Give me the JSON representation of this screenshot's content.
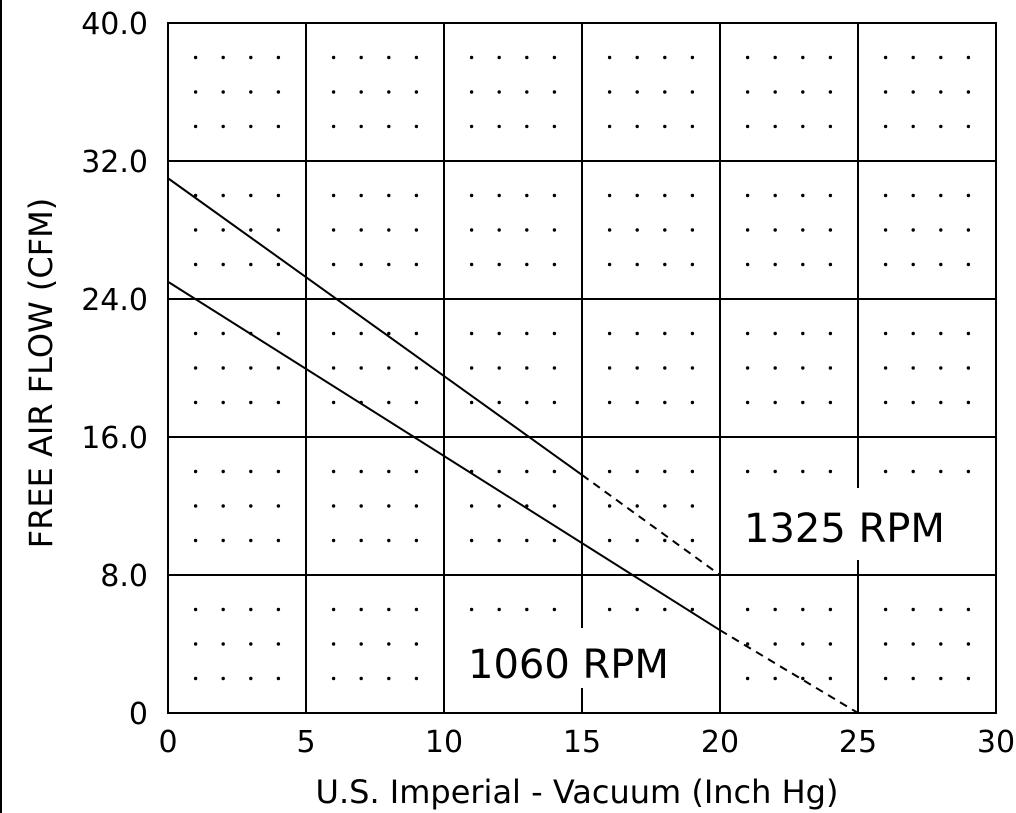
{
  "chart_data": {
    "type": "line",
    "title": "",
    "xlabel": "U.S. Imperial - Vacuum (Inch Hg)",
    "ylabel": "FREE AIR FLOW (CFM)",
    "xlim": [
      0,
      30
    ],
    "ylim": [
      0,
      40
    ],
    "x_ticks": [
      0,
      5,
      10,
      15,
      20,
      25,
      30
    ],
    "x_tick_labels": [
      "0",
      "5",
      "10",
      "15",
      "20",
      "25",
      "30"
    ],
    "y_ticks": [
      0,
      8,
      16,
      24,
      32,
      40
    ],
    "y_tick_labels": [
      "0",
      "8.0",
      "16.0",
      "24.0",
      "32.0",
      "40.0"
    ],
    "grid": true,
    "dot_grid": true,
    "line_color": "#000000",
    "series": [
      {
        "name": "1325 RPM",
        "solid": {
          "x": [
            0,
            15
          ],
          "y": [
            31,
            13.8
          ]
        },
        "dashed": {
          "x": [
            15,
            20
          ],
          "y": [
            13.8,
            8.0
          ]
        }
      },
      {
        "name": "1060 RPM",
        "solid": {
          "x": [
            0,
            20
          ],
          "y": [
            25,
            4.8
          ]
        },
        "dashed": {
          "x": [
            20,
            25
          ],
          "y": [
            4.8,
            0
          ]
        }
      }
    ],
    "annotations": [
      {
        "text": "1325 RPM",
        "series": 0
      },
      {
        "text": "1060 RPM",
        "series": 1
      }
    ]
  }
}
